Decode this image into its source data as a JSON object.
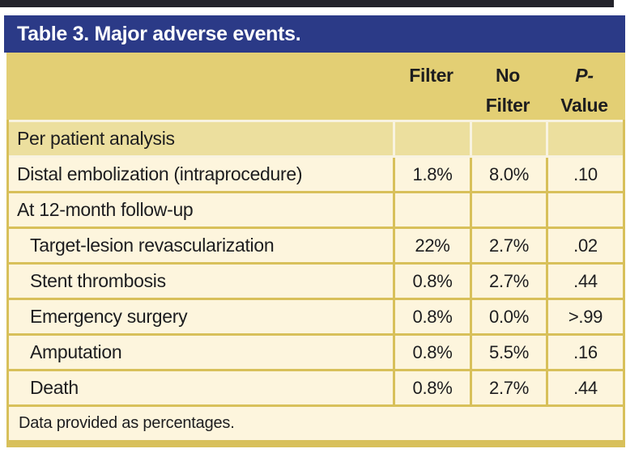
{
  "title": "Table 3. Major adverse events.",
  "colors": {
    "title_bar_navy": "#2b3a87",
    "header_gold": "#e3cf74",
    "section_tan": "#ecdf9e",
    "row_cream": "#fdf5dd",
    "rule_gold": "#d8c05a",
    "top_stripe_dark": "#23232b",
    "title_text": "#ffffff",
    "body_text": "#1d1d1f"
  },
  "table": {
    "headers": {
      "label_col": "",
      "filter": "Filter",
      "no_filter_line1": "No",
      "no_filter_line2": "Filter",
      "p_value_line1": "P-",
      "p_value_line2": "Value"
    },
    "rows": [
      {
        "label": "Per patient analysis",
        "filter": "",
        "no_filter": "",
        "p_value": ""
      },
      {
        "label": "Distal embolization (intraprocedure)",
        "filter": "1.8%",
        "no_filter": "8.0%",
        "p_value": ".10"
      },
      {
        "label": "At 12-month follow-up",
        "filter": "",
        "no_filter": "",
        "p_value": ""
      },
      {
        "label": "Target-lesion revascularization",
        "filter": "22%",
        "no_filter": "2.7%",
        "p_value": ".02"
      },
      {
        "label": "Stent thrombosis",
        "filter": "0.8%",
        "no_filter": "2.7%",
        "p_value": ".44"
      },
      {
        "label": "Emergency surgery",
        "filter": "0.8%",
        "no_filter": "0.0%",
        "p_value": ">.99"
      },
      {
        "label": "Amputation",
        "filter": "0.8%",
        "no_filter": "5.5%",
        "p_value": ".16"
      },
      {
        "label": "Death",
        "filter": "0.8%",
        "no_filter": "2.7%",
        "p_value": ".44"
      }
    ],
    "footnote": "Data provided as percentages."
  }
}
